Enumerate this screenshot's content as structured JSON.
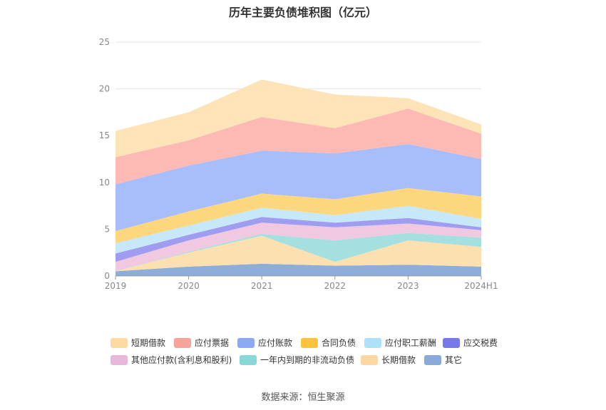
{
  "chart_data": {
    "type": "area",
    "stacked": true,
    "title": "历年主要负债堆积图（亿元）",
    "categories": [
      "2019",
      "2020",
      "2021",
      "2022",
      "2023",
      "2024H1"
    ],
    "ylim": [
      0,
      25
    ],
    "yticks": [
      0,
      5,
      10,
      15,
      20,
      25
    ],
    "grid": true,
    "legend_position": "bottom",
    "series": [
      {
        "name": "其它",
        "color": "#8fadd9",
        "values": [
          0.5,
          1.0,
          1.3,
          1.1,
          1.2,
          1.0
        ]
      },
      {
        "name": "长期借款",
        "color": "#fde0b0",
        "values": [
          0.0,
          1.5,
          3.0,
          0.4,
          2.6,
          2.1
        ]
      },
      {
        "name": "一年内到期的非流动负债",
        "color": "#a6dfe0",
        "values": [
          0.0,
          0.1,
          0.2,
          2.3,
          0.8,
          1.0
        ]
      },
      {
        "name": "其他应付款(含利息和股利)",
        "color": "#f0c8e0",
        "values": [
          1.0,
          1.2,
          1.2,
          1.4,
          1.0,
          0.8
        ]
      },
      {
        "name": "应交税费",
        "color": "#a09cf0",
        "values": [
          0.9,
          0.6,
          0.6,
          0.5,
          0.6,
          0.3
        ]
      },
      {
        "name": "应付职工薪酬",
        "color": "#c6e8f8",
        "values": [
          1.1,
          1.0,
          1.0,
          0.8,
          1.3,
          0.9
        ]
      },
      {
        "name": "合同负债",
        "color": "#fdd77e",
        "values": [
          1.3,
          1.5,
          1.5,
          1.7,
          1.9,
          2.4
        ]
      },
      {
        "name": "应付账款",
        "color": "#a8bdfb",
        "values": [
          5.0,
          4.9,
          4.6,
          4.9,
          4.7,
          4.0
        ]
      },
      {
        "name": "应付票据",
        "color": "#fdbab5",
        "values": [
          2.9,
          2.7,
          3.6,
          2.7,
          3.8,
          2.7
        ]
      },
      {
        "name": "短期借款",
        "color": "#fde4b8",
        "values": [
          2.8,
          3.0,
          4.0,
          3.6,
          1.1,
          1.0
        ]
      }
    ],
    "legend": [
      {
        "name": "短期借款",
        "color": "#fddaa0"
      },
      {
        "name": "应付票据",
        "color": "#f8a39a"
      },
      {
        "name": "应付账款",
        "color": "#8ea8f8"
      },
      {
        "name": "合同负债",
        "color": "#fcc43c"
      },
      {
        "name": "应付职工薪酬",
        "color": "#aee0fa"
      },
      {
        "name": "应交税费",
        "color": "#7878ee"
      },
      {
        "name": "其他应付款(含利息和股利)",
        "color": "#e8b8dc"
      },
      {
        "name": "一年内到期的非流动负债",
        "color": "#88d8d8"
      },
      {
        "name": "长期借款",
        "color": "#fdd8a2"
      },
      {
        "name": "其它",
        "color": "#8aaad8"
      }
    ]
  },
  "source": "数据来源：恒生聚源"
}
